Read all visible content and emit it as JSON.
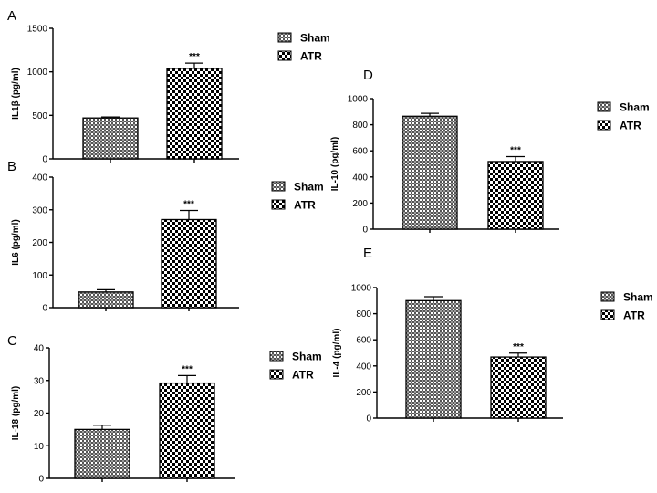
{
  "chart_data": [
    {
      "panel": "A",
      "type": "bar",
      "categories": [
        "Sham",
        "ATR"
      ],
      "values": [
        470,
        1040
      ],
      "errors": [
        12,
        60
      ],
      "significance": [
        "",
        "***"
      ],
      "ylabel": "IL1β (pg/ml)",
      "ylim": [
        0,
        1500
      ],
      "yticks": [
        "0",
        "500",
        "1000",
        "1500"
      ],
      "legend": [
        "Sham",
        "ATR"
      ]
    },
    {
      "panel": "B",
      "type": "bar",
      "categories": [
        "Sham",
        "ATR"
      ],
      "values": [
        48,
        270
      ],
      "errors": [
        7,
        28
      ],
      "significance": [
        "",
        "***"
      ],
      "ylabel": "IL6 (pg/ml)",
      "ylim": [
        0,
        400
      ],
      "yticks": [
        "0",
        "100",
        "200",
        "300",
        "400"
      ],
      "legend": [
        "Sham",
        "ATR"
      ]
    },
    {
      "panel": "C",
      "type": "bar",
      "categories": [
        "Sham",
        "ATR"
      ],
      "values": [
        15,
        29.2
      ],
      "errors": [
        1.3,
        2.3
      ],
      "significance": [
        "",
        "***"
      ],
      "ylabel": "IL-18 (pg/ml)",
      "ylim": [
        0,
        40
      ],
      "yticks": [
        "0",
        "10",
        "20",
        "30",
        "40"
      ],
      "legend": [
        "Sham",
        "ATR"
      ]
    },
    {
      "panel": "D",
      "type": "bar",
      "categories": [
        "Sham",
        "ATR"
      ],
      "values": [
        865,
        518
      ],
      "errors": [
        22,
        38
      ],
      "significance": [
        "",
        "***"
      ],
      "ylabel": "IL-10 (pg/ml)",
      "ylim": [
        0,
        1000
      ],
      "yticks": [
        "0",
        "200",
        "400",
        "600",
        "800",
        "1000"
      ],
      "legend": [
        "Sham",
        "ATR"
      ]
    },
    {
      "panel": "E",
      "type": "bar",
      "categories": [
        "Sham",
        "ATR"
      ],
      "values": [
        900,
        468
      ],
      "errors": [
        30,
        30
      ],
      "significance": [
        "",
        "***"
      ],
      "ylabel": "IL-4 (pg/ml)",
      "ylim": [
        0,
        1000
      ],
      "yticks": [
        "0",
        "200",
        "400",
        "600",
        "800",
        "1000"
      ],
      "legend": [
        "Sham",
        "ATR"
      ]
    }
  ],
  "colors": {
    "ink": "#000000",
    "sham_fill": "#6e6e6e",
    "atr_fill": "#ffffff"
  },
  "patterns": {
    "sham": "fine-hatch",
    "atr": "checkerboard"
  }
}
